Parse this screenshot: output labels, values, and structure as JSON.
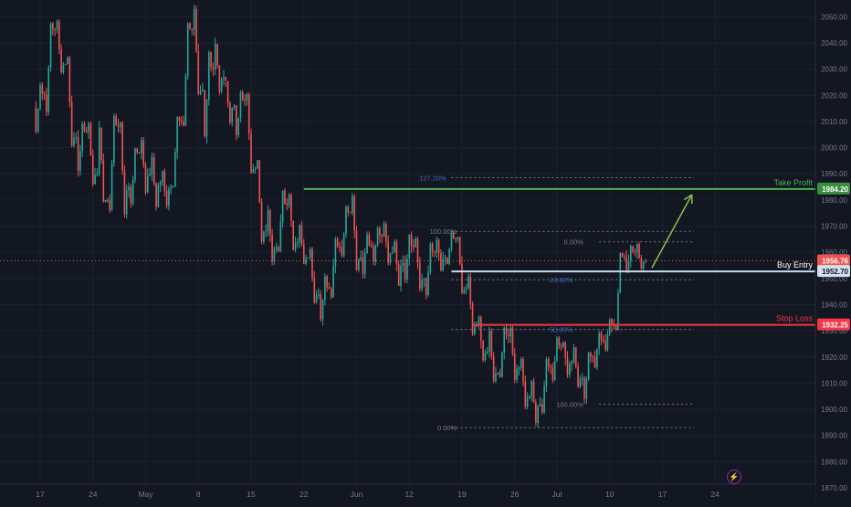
{
  "chart_data": {
    "type": "candlestick",
    "title": "",
    "colors": {
      "background": "#131722",
      "up": "#26a69a",
      "down": "#ef5350",
      "grid": "#1c2030",
      "axis_text": "#787b86",
      "take_profit": "#4caf50",
      "buy_entry": "#c8d9ee",
      "stop_loss": "#f23645",
      "fib": "#787b86",
      "fib_blue": "#2962ff",
      "arrow": "#8bc34a"
    },
    "y_axis": {
      "min": 1870,
      "max": 2055,
      "ticks": [
        "1870.00",
        "1880.00",
        "1890.00",
        "1900.00",
        "1910.00",
        "1920.00",
        "1930.00",
        "1940.00",
        "1950.00",
        "1960.00",
        "1970.00",
        "1980.00",
        "1990.00",
        "2000.00",
        "2010.00",
        "2020.00",
        "2030.00",
        "2040.00",
        "2050.00"
      ]
    },
    "x_axis": {
      "labels": [
        "17",
        "24",
        "May",
        "8",
        "15",
        "22",
        "Jun",
        "12",
        "19",
        "26",
        "Jul",
        "10",
        "17",
        "24"
      ],
      "label_bars": [
        0,
        5,
        10,
        15,
        20,
        25,
        30,
        35,
        40,
        45,
        49,
        54,
        59,
        64
      ]
    },
    "current_price": "1956.76",
    "candles_daily": [
      {
        "o": 2015,
        "h": 2025,
        "l": 2004,
        "c": 2020
      },
      {
        "o": 2020,
        "h": 2048,
        "l": 2012,
        "c": 2045
      },
      {
        "o": 2045,
        "h": 2049,
        "l": 2028,
        "c": 2032
      },
      {
        "o": 2032,
        "h": 2035,
        "l": 2000,
        "c": 2004
      },
      {
        "o": 2004,
        "h": 2010,
        "l": 1988,
        "c": 2006
      },
      {
        "o": 2006,
        "h": 2010,
        "l": 1985,
        "c": 1990
      },
      {
        "o": 1990,
        "h": 2012,
        "l": 1979,
        "c": 1980
      },
      {
        "o": 1980,
        "h": 2013,
        "l": 1975,
        "c": 2008
      },
      {
        "o": 2008,
        "h": 2010,
        "l": 1972,
        "c": 1985
      },
      {
        "o": 1985,
        "h": 2000,
        "l": 1977,
        "c": 1998
      },
      {
        "o": 1998,
        "h": 2004,
        "l": 1981,
        "c": 1990
      },
      {
        "o": 1990,
        "h": 1998,
        "l": 1975,
        "c": 1987
      },
      {
        "o": 1987,
        "h": 1992,
        "l": 1976,
        "c": 1985
      },
      {
        "o": 1985,
        "h": 2012,
        "l": 1985,
        "c": 2010
      },
      {
        "o": 2010,
        "h": 2048,
        "l": 2008,
        "c": 2045
      },
      {
        "o": 2045,
        "h": 2055,
        "l": 2020,
        "c": 2022
      },
      {
        "o": 2022,
        "h": 2038,
        "l": 2000,
        "c": 2030
      },
      {
        "o": 2030,
        "h": 2042,
        "l": 2020,
        "c": 2027
      },
      {
        "o": 2027,
        "h": 2025,
        "l": 2008,
        "c": 2016
      },
      {
        "o": 2016,
        "h": 2022,
        "l": 2002,
        "c": 2018
      },
      {
        "o": 2018,
        "h": 2021,
        "l": 1990,
        "c": 1992
      },
      {
        "o": 1992,
        "h": 1996,
        "l": 1963,
        "c": 1968
      },
      {
        "o": 1968,
        "h": 1978,
        "l": 1955,
        "c": 1962
      },
      {
        "o": 1962,
        "h": 1985,
        "l": 1960,
        "c": 1978
      },
      {
        "o": 1978,
        "h": 1983,
        "l": 1960,
        "c": 1964
      },
      {
        "o": 1964,
        "h": 1972,
        "l": 1955,
        "c": 1958
      },
      {
        "o": 1958,
        "h": 1962,
        "l": 1940,
        "c": 1944
      },
      {
        "o": 1944,
        "h": 1952,
        "l": 1932,
        "c": 1946
      },
      {
        "o": 1946,
        "h": 1966,
        "l": 1942,
        "c": 1962
      },
      {
        "o": 1962,
        "h": 1978,
        "l": 1958,
        "c": 1975
      },
      {
        "o": 1975,
        "h": 1983,
        "l": 1952,
        "c": 1958
      },
      {
        "o": 1958,
        "h": 1968,
        "l": 1950,
        "c": 1962
      },
      {
        "o": 1962,
        "h": 1970,
        "l": 1955,
        "c": 1966
      },
      {
        "o": 1966,
        "h": 1972,
        "l": 1955,
        "c": 1960
      },
      {
        "o": 1960,
        "h": 1965,
        "l": 1945,
        "c": 1956
      },
      {
        "o": 1956,
        "h": 1968,
        "l": 1948,
        "c": 1962
      },
      {
        "o": 1962,
        "h": 1966,
        "l": 1945,
        "c": 1950
      },
      {
        "o": 1950,
        "h": 1964,
        "l": 1942,
        "c": 1960
      },
      {
        "o": 1960,
        "h": 1966,
        "l": 1952,
        "c": 1958
      },
      {
        "o": 1958,
        "h": 1968,
        "l": 1955,
        "c": 1965
      },
      {
        "o": 1965,
        "h": 1966,
        "l": 1944,
        "c": 1946
      },
      {
        "o": 1946,
        "h": 1952,
        "l": 1928,
        "c": 1932
      },
      {
        "o": 1932,
        "h": 1936,
        "l": 1918,
        "c": 1922
      },
      {
        "o": 1922,
        "h": 1932,
        "l": 1910,
        "c": 1914
      },
      {
        "o": 1914,
        "h": 1932,
        "l": 1912,
        "c": 1928
      },
      {
        "o": 1928,
        "h": 1932,
        "l": 1910,
        "c": 1916
      },
      {
        "o": 1916,
        "h": 1920,
        "l": 1900,
        "c": 1905
      },
      {
        "o": 1905,
        "h": 1912,
        "l": 1893,
        "c": 1902
      },
      {
        "o": 1902,
        "h": 1920,
        "l": 1898,
        "c": 1916
      },
      {
        "o": 1916,
        "h": 1928,
        "l": 1910,
        "c": 1924
      },
      {
        "o": 1924,
        "h": 1926,
        "l": 1912,
        "c": 1918
      },
      {
        "o": 1918,
        "h": 1925,
        "l": 1908,
        "c": 1912
      },
      {
        "o": 1912,
        "h": 1922,
        "l": 1902,
        "c": 1920
      },
      {
        "o": 1920,
        "h": 1930,
        "l": 1915,
        "c": 1926
      },
      {
        "o": 1926,
        "h": 1935,
        "l": 1922,
        "c": 1932
      },
      {
        "o": 1932,
        "h": 1960,
        "l": 1930,
        "c": 1958
      },
      {
        "o": 1958,
        "h": 1963,
        "l": 1952,
        "c": 1960
      },
      {
        "o": 1960,
        "h": 1964,
        "l": 1953,
        "c": 1956.76
      }
    ],
    "levels": [
      {
        "name": "Take Profit",
        "value": 1984.2,
        "label": "1984.20",
        "from_bar": 25
      },
      {
        "name": "Buy Entry",
        "value": 1952.7,
        "label": "1952.70",
        "from_bar": 39
      },
      {
        "name": "Stop Loss",
        "value": 1932.25,
        "label": "1932.25",
        "from_bar": 41
      }
    ],
    "fib_sets": [
      {
        "from_bar": 39,
        "to_bar": 62,
        "levels": [
          {
            "label": "127.20%",
            "value": 1988.5,
            "label_bar": 38.5,
            "blue": true
          },
          {
            "label": "100.00%",
            "value": 1968,
            "label_bar": 39.5,
            "blue": false
          },
          {
            "label": "23.60%",
            "value": 1949.5,
            "label_bar": 50.5,
            "blue": true
          },
          {
            "label": "50.00%",
            "value": 1930.5,
            "label_bar": 50.5,
            "blue": true
          },
          {
            "label": "0.00%",
            "value": 1893,
            "label_bar": 39.5,
            "blue": false
          }
        ]
      },
      {
        "from_bar": 53,
        "to_bar": 62,
        "levels": [
          {
            "label": "0.00%",
            "value": 1964,
            "label_bar": 51.5,
            "blue": false
          },
          {
            "label": "100.00%",
            "value": 1902,
            "label_bar": 51.5,
            "blue": false
          }
        ]
      }
    ],
    "annotations": {
      "take_profit_label": "Take Profit",
      "buy_entry_label": "Buy Entry",
      "stop_loss_label": "Stop Loss"
    },
    "projection_arrow": {
      "from_bar": 58,
      "from_value": 1954,
      "to_bar": 61.8,
      "to_value": 1982
    }
  },
  "watermark_icon": "lightning-icon"
}
